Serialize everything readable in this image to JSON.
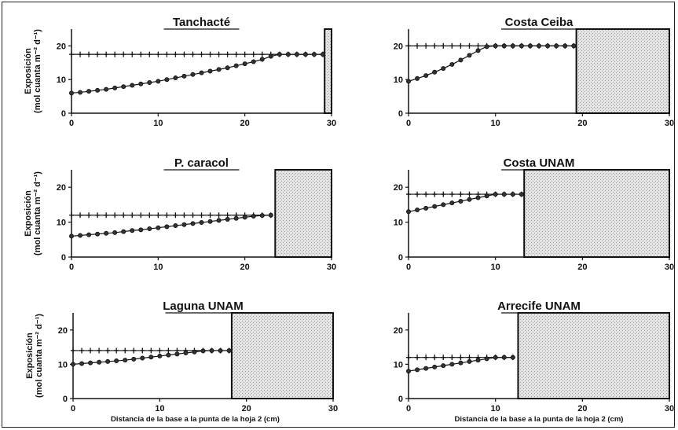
{
  "chart_data": [
    {
      "type": "line",
      "title": "Tanchacté",
      "ylabel_line1": "Exposición",
      "ylabel_line2": "(mol cuanta m⁻² d⁻¹)",
      "xlabel": "",
      "xlim": [
        0,
        30
      ],
      "ylim": [
        0,
        25
      ],
      "xticks": [
        "0",
        "10",
        "20",
        "30"
      ],
      "yticks": [
        "0",
        "10",
        "20"
      ],
      "shaded_region": [
        29.2,
        30
      ],
      "series": [
        {
          "marker": "cross",
          "x": [
            0,
            1,
            2,
            3,
            4,
            5,
            6,
            7,
            8,
            9,
            10,
            11,
            12,
            13,
            14,
            15,
            16,
            17,
            18,
            19,
            20,
            21,
            22,
            23,
            24,
            25,
            26,
            27,
            28,
            29
          ],
          "y": [
            17.5,
            17.5,
            17.5,
            17.5,
            17.5,
            17.5,
            17.5,
            17.5,
            17.5,
            17.5,
            17.5,
            17.5,
            17.5,
            17.5,
            17.5,
            17.5,
            17.5,
            17.5,
            17.5,
            17.5,
            17.5,
            17.5,
            17.5,
            17.5,
            17.5,
            17.5,
            17.5,
            17.5,
            17.5,
            17.5
          ]
        },
        {
          "marker": "circle",
          "x": [
            0,
            1,
            2,
            3,
            4,
            5,
            6,
            7,
            8,
            9,
            10,
            11,
            12,
            13,
            14,
            15,
            16,
            17,
            18,
            19,
            20,
            21,
            22,
            23,
            24,
            25,
            26,
            27,
            28,
            29
          ],
          "y": [
            6,
            6.2,
            6.5,
            6.8,
            7.1,
            7.5,
            7.9,
            8.3,
            8.7,
            9.1,
            9.5,
            10,
            10.5,
            11,
            11.5,
            12,
            12.5,
            13,
            13.5,
            14.1,
            14.7,
            15.3,
            16,
            16.9,
            17.5,
            17.5,
            17.5,
            17.5,
            17.5,
            17.5
          ]
        }
      ]
    },
    {
      "type": "line",
      "title": "Costa Ceiba",
      "ylabel_line1": "",
      "ylabel_line2": "",
      "xlabel": "",
      "xlim": [
        0,
        30
      ],
      "ylim": [
        0,
        25
      ],
      "xticks": [
        "0",
        "10",
        "20",
        "30"
      ],
      "yticks": [
        "0",
        "10",
        "20"
      ],
      "shaded_region": [
        19.3,
        30
      ],
      "series": [
        {
          "marker": "cross",
          "x": [
            0,
            1,
            2,
            3,
            4,
            5,
            6,
            7,
            8,
            9,
            10,
            11,
            12,
            13,
            14,
            15,
            16,
            17,
            18,
            19
          ],
          "y": [
            20,
            20,
            20,
            20,
            20,
            20,
            20,
            20,
            20,
            20,
            20,
            20,
            20,
            20,
            20,
            20,
            20,
            20,
            20,
            20
          ]
        },
        {
          "marker": "circle",
          "x": [
            0,
            1,
            2,
            3,
            4,
            5,
            6,
            7,
            8,
            9,
            10,
            11,
            12,
            13,
            14,
            15,
            16,
            17,
            18,
            19
          ],
          "y": [
            9.5,
            10.3,
            11.2,
            12.2,
            13.3,
            14.5,
            15.8,
            17.2,
            18.6,
            19.8,
            20,
            20,
            20,
            20,
            20,
            20,
            20,
            20,
            20,
            20
          ]
        }
      ]
    },
    {
      "type": "line",
      "title": "P. caracol",
      "ylabel_line1": "Exposición",
      "ylabel_line2": "(mol cuanta m⁻² d⁻¹)",
      "xlabel": "",
      "xlim": [
        0,
        30
      ],
      "ylim": [
        0,
        25
      ],
      "xticks": [
        "0",
        "10",
        "20",
        "30"
      ],
      "yticks": [
        "0",
        "10",
        "20"
      ],
      "shaded_region": [
        23.5,
        30
      ],
      "series": [
        {
          "marker": "cross",
          "x": [
            0,
            1,
            2,
            3,
            4,
            5,
            6,
            7,
            8,
            9,
            10,
            11,
            12,
            13,
            14,
            15,
            16,
            17,
            18,
            19,
            20,
            21,
            22,
            23
          ],
          "y": [
            12,
            12,
            12,
            12,
            12,
            12,
            12,
            12,
            12,
            12,
            12,
            12,
            12,
            12,
            12,
            12,
            12,
            12,
            12,
            12,
            12,
            12,
            12,
            12
          ]
        },
        {
          "marker": "circle",
          "x": [
            0,
            1,
            2,
            3,
            4,
            5,
            6,
            7,
            8,
            9,
            10,
            11,
            12,
            13,
            14,
            15,
            16,
            17,
            18,
            19,
            20,
            21,
            22,
            23
          ],
          "y": [
            6,
            6.2,
            6.4,
            6.6,
            6.8,
            7,
            7.3,
            7.6,
            7.8,
            8.1,
            8.4,
            8.7,
            9,
            9.3,
            9.6,
            9.9,
            10.2,
            10.5,
            10.8,
            11.1,
            11.4,
            11.7,
            11.9,
            12
          ]
        }
      ]
    },
    {
      "type": "line",
      "title": "Costa UNAM",
      "ylabel_line1": "",
      "ylabel_line2": "",
      "xlabel": "",
      "xlim": [
        0,
        30
      ],
      "ylim": [
        0,
        25
      ],
      "xticks": [
        "0",
        "10",
        "20",
        "30"
      ],
      "yticks": [
        "0",
        "10",
        "20"
      ],
      "shaded_region": [
        13.3,
        30
      ],
      "series": [
        {
          "marker": "cross",
          "x": [
            0,
            1,
            2,
            3,
            4,
            5,
            6,
            7,
            8,
            9,
            10,
            11,
            12,
            13
          ],
          "y": [
            18,
            18,
            18,
            18,
            18,
            18,
            18,
            18,
            18,
            18,
            18,
            18,
            18,
            18
          ]
        },
        {
          "marker": "circle",
          "x": [
            0,
            1,
            2,
            3,
            4,
            5,
            6,
            7,
            8,
            9,
            10,
            11,
            12,
            13
          ],
          "y": [
            13,
            13.5,
            14,
            14.5,
            15,
            15.5,
            16,
            16.5,
            17,
            17.5,
            18,
            18,
            18,
            18
          ]
        }
      ]
    },
    {
      "type": "line",
      "title": "Laguna UNAM",
      "ylabel_line1": "Exposición",
      "ylabel_line2": "(mol cuanta m⁻² d⁻¹)",
      "xlabel": "Distancia de la base a la punta de la hoja 2 (cm)",
      "xlim": [
        0,
        30
      ],
      "ylim": [
        0,
        25
      ],
      "xticks": [
        "0",
        "10",
        "20",
        "30"
      ],
      "yticks": [
        "0",
        "10",
        "20"
      ],
      "shaded_region": [
        18.3,
        30
      ],
      "series": [
        {
          "marker": "cross",
          "x": [
            0,
            1,
            2,
            3,
            4,
            5,
            6,
            7,
            8,
            9,
            10,
            11,
            12,
            13,
            14,
            15,
            16,
            17,
            18
          ],
          "y": [
            14,
            14,
            14,
            14,
            14,
            14,
            14,
            14,
            14,
            14,
            14,
            14,
            14,
            14,
            14,
            14,
            14,
            14,
            14
          ]
        },
        {
          "marker": "circle",
          "x": [
            0,
            1,
            2,
            3,
            4,
            5,
            6,
            7,
            8,
            9,
            10,
            11,
            12,
            13,
            14,
            15,
            16,
            17,
            18
          ],
          "y": [
            10,
            10.2,
            10.4,
            10.6,
            10.8,
            11,
            11.2,
            11.5,
            11.8,
            12.1,
            12.4,
            12.7,
            13,
            13.3,
            13.6,
            13.9,
            14,
            14,
            14
          ]
        }
      ]
    },
    {
      "type": "line",
      "title": "Arrecife UNAM",
      "ylabel_line1": "",
      "ylabel_line2": "",
      "xlabel": "Distancia de la base a la punta de la hoja 2 (cm)",
      "xlim": [
        0,
        30
      ],
      "ylim": [
        0,
        25
      ],
      "xticks": [
        "0",
        "10",
        "20",
        "30"
      ],
      "yticks": [
        "0",
        "10",
        "20"
      ],
      "shaded_region": [
        12.6,
        30
      ],
      "series": [
        {
          "marker": "cross",
          "x": [
            0,
            1,
            2,
            3,
            4,
            5,
            6,
            7,
            8,
            9,
            10,
            11,
            12
          ],
          "y": [
            12,
            12,
            12,
            12,
            12,
            12,
            12,
            12,
            12,
            12,
            12,
            12,
            12
          ]
        },
        {
          "marker": "circle",
          "x": [
            0,
            1,
            2,
            3,
            4,
            5,
            6,
            7,
            8,
            9,
            10,
            11,
            12
          ],
          "y": [
            8,
            8.4,
            8.8,
            9.2,
            9.6,
            10,
            10.4,
            10.8,
            11.2,
            11.6,
            12,
            12,
            12
          ]
        }
      ]
    }
  ],
  "colors": {
    "line": "#111111",
    "shade_fill": "#e4e4e4",
    "shade_dots": "#9a9a9a",
    "background": "#ffffff"
  }
}
